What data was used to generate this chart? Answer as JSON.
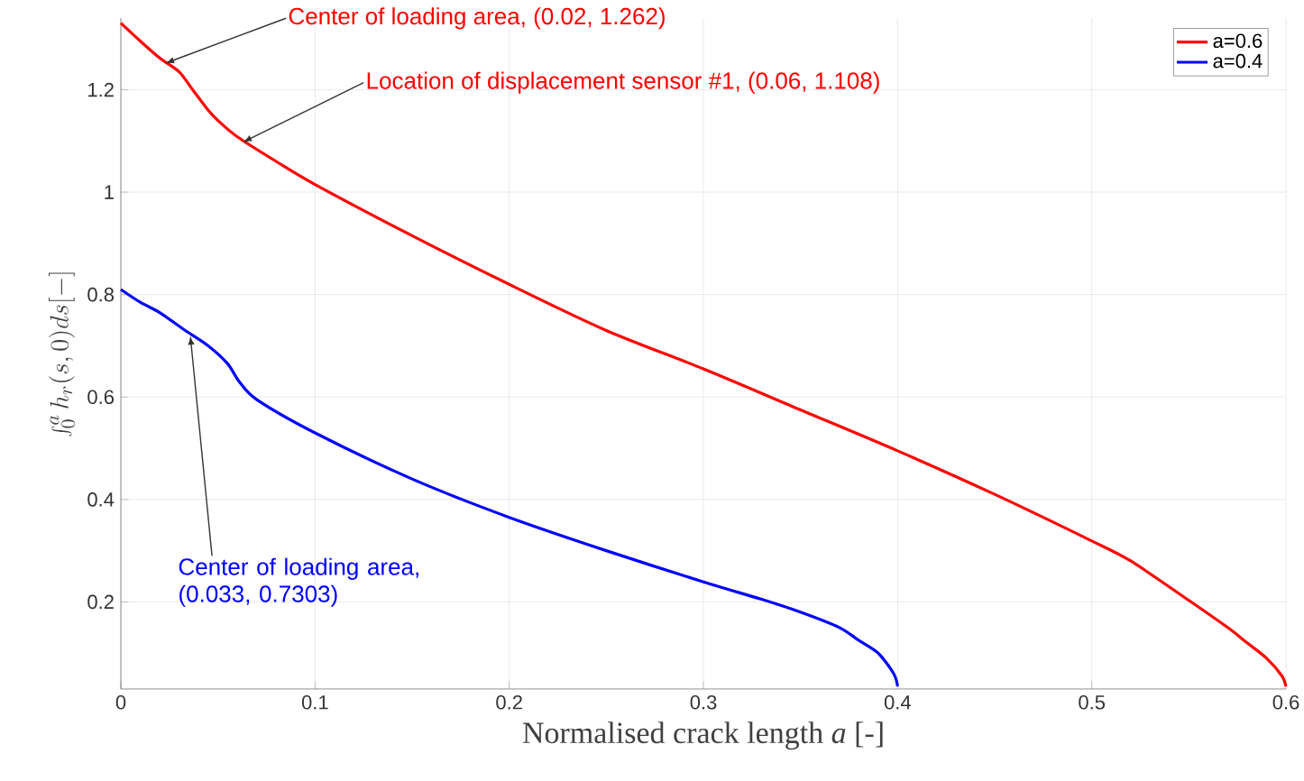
{
  "chart_data": {
    "type": "line",
    "xlabel": "Normalised crack length *a* [-]",
    "ylabel": "\\int_0^a h_r(s,0)ds[\\mathrm{-}]",
    "series": [
      {
        "name": "a=0.6",
        "color": "#ff0000",
        "x": [
          0,
          0.01,
          0.02,
          0.03,
          0.037,
          0.045,
          0.05,
          0.06,
          0.08,
          0.1,
          0.15,
          0.2,
          0.25,
          0.3,
          0.35,
          0.4,
          0.45,
          0.5,
          0.52,
          0.55,
          0.57,
          0.58,
          0.59,
          0.598,
          0.6
        ],
        "values": [
          1.33,
          1.295,
          1.262,
          1.235,
          1.2,
          1.16,
          1.14,
          1.108,
          1.06,
          1.015,
          0.915,
          0.82,
          0.73,
          0.655,
          0.575,
          0.495,
          0.41,
          0.319,
          0.28,
          0.203,
          0.15,
          0.12,
          0.09,
          0.055,
          0.035
        ]
      },
      {
        "name": "a=0.4",
        "color": "#0000ff",
        "x": [
          0,
          0.01,
          0.02,
          0.033,
          0.045,
          0.055,
          0.061,
          0.07,
          0.1,
          0.15,
          0.2,
          0.25,
          0.3,
          0.33,
          0.35,
          0.37,
          0.38,
          0.39,
          0.398,
          0.4
        ],
        "values": [
          0.81,
          0.785,
          0.765,
          0.7303,
          0.7,
          0.665,
          0.63,
          0.595,
          0.53,
          0.44,
          0.365,
          0.3,
          0.239,
          0.205,
          0.18,
          0.15,
          0.125,
          0.1,
          0.06,
          0.035
        ]
      }
    ],
    "xlim": [
      0,
      0.6
    ],
    "ylim": [
      0.03,
      1.34
    ],
    "xticks": [
      0,
      0.1,
      0.2,
      0.3,
      0.4,
      0.5,
      0.6
    ],
    "yticks": [
      0.2,
      0.4,
      0.6,
      0.8,
      1,
      1.2
    ],
    "grid": true,
    "legend": "top right",
    "line_style": "solid",
    "marker": "none",
    "annotations": [
      {
        "text": "Center of loading area, (0.02, 1.262)",
        "x": 0.02,
        "y": 1.262
      },
      {
        "text": "Location of displacement sensor #1, (0.06, 1.108)",
        "x": 0.06,
        "y": 1.108
      },
      {
        "text": "Center of loading area, (0.033, 0.7303)",
        "x": 0.033,
        "y": 0.7303
      }
    ]
  }
}
